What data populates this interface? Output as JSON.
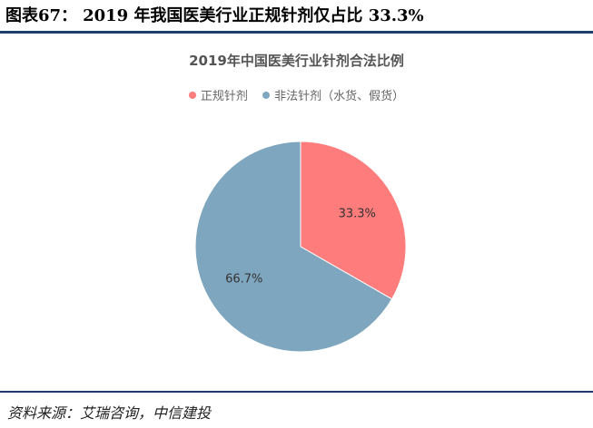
{
  "figure": {
    "label": "图表67：",
    "title": "2019 年我国医美行业正规针剂仅占比 33.3%"
  },
  "source": "资料来源：艾瑞咨询，中信建投",
  "colors": {
    "rule": "#1c3f6e",
    "legal": "#ff7c7c",
    "illegal": "#7fa6bf"
  },
  "chart_data": {
    "type": "pie",
    "title": "2019年中国医美行业针剂合法比例",
    "legend_position": "top",
    "slices": [
      {
        "name": "正规针剂",
        "value": 33.3,
        "label": "33.3%",
        "color": "#ff7c7c"
      },
      {
        "name": "非法针剂（水货、假货）",
        "value": 66.7,
        "label": "66.7%",
        "color": "#7fa6bf"
      }
    ]
  }
}
